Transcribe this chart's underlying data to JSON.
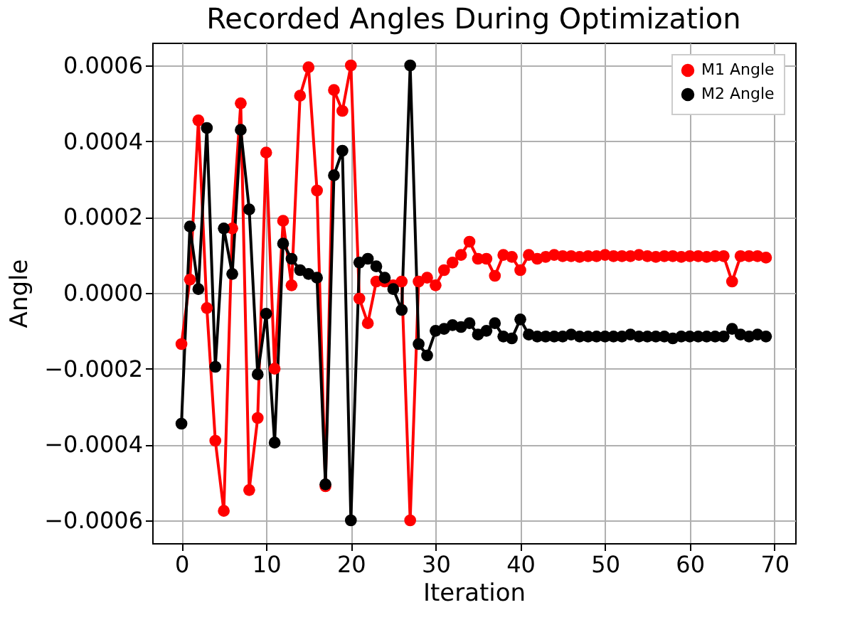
{
  "chart_data": {
    "type": "line",
    "title": "Recorded Angles During Optimization",
    "xlabel": "Iteration",
    "ylabel": "Angle",
    "x": [
      0,
      1,
      2,
      3,
      4,
      5,
      6,
      7,
      8,
      9,
      10,
      11,
      12,
      13,
      14,
      15,
      16,
      17,
      18,
      19,
      20,
      21,
      22,
      23,
      24,
      25,
      26,
      27,
      28,
      29,
      30,
      31,
      32,
      33,
      34,
      35,
      36,
      37,
      38,
      39,
      40,
      41,
      42,
      43,
      44,
      45,
      46,
      47,
      48,
      49,
      50,
      51,
      52,
      53,
      54,
      55,
      56,
      57,
      58,
      59,
      60,
      61,
      62,
      63,
      64,
      65,
      66,
      67,
      68,
      69
    ],
    "series": [
      {
        "name": "M1 Angle",
        "color": "#ff0000",
        "values": [
          -0.000135,
          3.5e-05,
          0.000455,
          -4e-05,
          -0.00039,
          -0.000575,
          0.00017,
          0.0005,
          -0.00052,
          -0.00033,
          0.00037,
          -0.0002,
          0.00019,
          2e-05,
          0.00052,
          0.000595,
          0.00027,
          -0.00051,
          0.000535,
          0.00048,
          0.0006,
          -1.5e-05,
          -8e-05,
          3e-05,
          3e-05,
          2e-05,
          3e-05,
          -0.0006,
          3e-05,
          4e-05,
          2e-05,
          6e-05,
          8e-05,
          0.0001,
          0.000135,
          9e-05,
          9e-05,
          4.5e-05,
          0.0001,
          9.5e-05,
          6e-05,
          0.0001,
          9e-05,
          9.5e-05,
          0.0001,
          9.7e-05,
          9.7e-05,
          9.5e-05,
          9.7e-05,
          9.7e-05,
          0.0001,
          9.7e-05,
          9.7e-05,
          9.7e-05,
          0.0001,
          9.7e-05,
          9.5e-05,
          9.7e-05,
          9.7e-05,
          9.5e-05,
          9.7e-05,
          9.7e-05,
          9.5e-05,
          9.7e-05,
          9.7e-05,
          3e-05,
          9.7e-05,
          9.7e-05,
          9.7e-05,
          9.3e-05
        ]
      },
      {
        "name": "M2 Angle",
        "color": "#000000",
        "values": [
          -0.000345,
          0.000175,
          1e-05,
          0.000435,
          -0.000195,
          0.00017,
          5e-05,
          0.00043,
          0.00022,
          -0.000215,
          -5.5e-05,
          -0.000395,
          0.00013,
          9e-05,
          6e-05,
          5e-05,
          4e-05,
          -0.000505,
          0.00031,
          0.000375,
          -0.0006,
          8e-05,
          9e-05,
          7e-05,
          4e-05,
          1e-05,
          -4.5e-05,
          0.0006,
          -0.000135,
          -0.000165,
          -0.0001,
          -9.5e-05,
          -8.5e-05,
          -9e-05,
          -8e-05,
          -0.00011,
          -0.0001,
          -8e-05,
          -0.000115,
          -0.00012,
          -7e-05,
          -0.00011,
          -0.000115,
          -0.000115,
          -0.000115,
          -0.000115,
          -0.00011,
          -0.000115,
          -0.000115,
          -0.000115,
          -0.000115,
          -0.000115,
          -0.000115,
          -0.00011,
          -0.000115,
          -0.000115,
          -0.000115,
          -0.000115,
          -0.00012,
          -0.000115,
          -0.000115,
          -0.000115,
          -0.000115,
          -0.000115,
          -0.000115,
          -9.5e-05,
          -0.00011,
          -0.000115,
          -0.00011,
          -0.000115
        ]
      }
    ],
    "xlim": [
      -3.45,
      72.45
    ],
    "xticks": [
      0,
      10,
      20,
      30,
      40,
      50,
      60,
      70
    ],
    "ylim": [
      -0.00066,
      0.00066
    ],
    "yticks": [
      {
        "value": -0.0006,
        "label": "−0.0006"
      },
      {
        "value": -0.0004,
        "label": "−0.0004"
      },
      {
        "value": -0.0002,
        "label": "−0.0002"
      },
      {
        "value": 0,
        "label": "0.0000"
      },
      {
        "value": 0.0002,
        "label": "0.0002"
      },
      {
        "value": 0.0004,
        "label": "0.0004"
      },
      {
        "value": 0.0006,
        "label": "0.0006"
      }
    ],
    "grid": true,
    "legend": "top right",
    "marker": "circle",
    "line_style": "solid"
  }
}
